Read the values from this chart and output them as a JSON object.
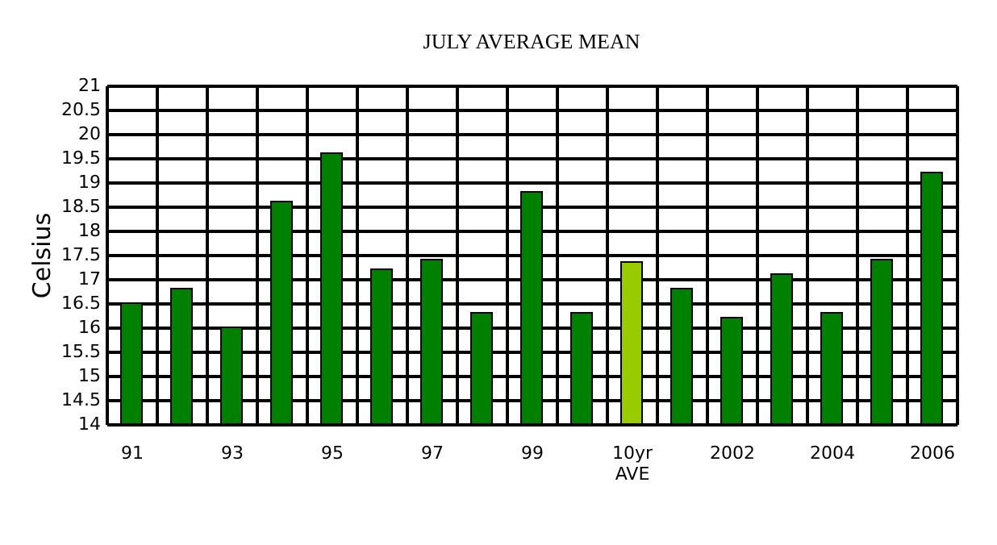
{
  "chart_data": {
    "type": "bar",
    "title": "JULY AVERAGE MEAN",
    "ylabel": "Celsius",
    "categories": [
      "91",
      null,
      "93",
      null,
      "95",
      null,
      "97",
      null,
      "99",
      null,
      "10yr AVE",
      null,
      "2002",
      null,
      "2004",
      null,
      "2006"
    ],
    "values": [
      16.5,
      16.8,
      16.0,
      18.6,
      19.6,
      17.2,
      17.4,
      16.3,
      18.8,
      16.3,
      17.35,
      16.8,
      16.2,
      17.1,
      16.3,
      17.4,
      19.2
    ],
    "colors": [
      "#008000",
      "#008000",
      "#008000",
      "#008000",
      "#008000",
      "#008000",
      "#008000",
      "#008000",
      "#008000",
      "#008000",
      "#99cc00",
      "#008000",
      "#008000",
      "#008000",
      "#008000",
      "#008000",
      "#008000"
    ],
    "ylim": [
      14,
      21
    ],
    "yticks": [
      14,
      14.5,
      15,
      15.5,
      16,
      16.5,
      17,
      17.5,
      18,
      18.5,
      19,
      19.5,
      20,
      20.5,
      21
    ],
    "grid": true
  }
}
